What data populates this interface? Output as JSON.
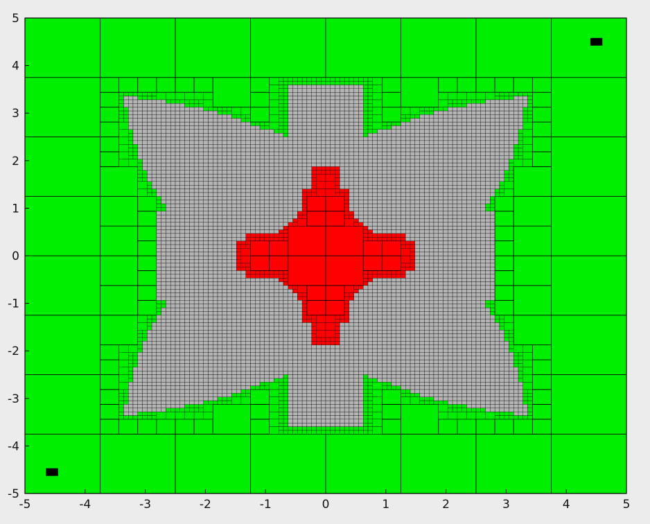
{
  "chart_data": {
    "type": "heatmap",
    "title": "",
    "xlabel": "",
    "ylabel": "",
    "xlim": [
      -5,
      5
    ],
    "ylim": [
      -5,
      5
    ],
    "xticks": [
      -5,
      -4,
      -3,
      -2,
      -1,
      0,
      1,
      2,
      3,
      4,
      5
    ],
    "yticks": [
      -5,
      -4,
      -3,
      -2,
      -1,
      0,
      1,
      2,
      3,
      4,
      5
    ],
    "xtick_labels": [
      "-5",
      "-4",
      "-3",
      "-2",
      "-1",
      "0",
      "1",
      "2",
      "3",
      "4",
      "5"
    ],
    "ytick_labels": [
      "-5",
      "-4",
      "-3",
      "-2",
      "-1",
      "0",
      "1",
      "2",
      "3",
      "4",
      "5"
    ],
    "grid": false,
    "description_of_cells": "adaptive quadtree subdivision of the square [-5,5]x[-5,5]; green = boxes excluded, gray = undecided boxes at finest level, red = boxes inside, black = two small marked boxes",
    "colors": {
      "excluded": "#00ee00",
      "undecided": "#b4b4b4",
      "inside": "#ff0000",
      "marker": "#000000",
      "edge": "#000000",
      "background": "#ececec"
    },
    "region_model": {
      "undecided_shape": "four-armed star with arms toward the corners and notches at axis midpoints",
      "inside_shape": "cross-shaped blob centered at origin",
      "undecided_extent": {
        "x": [
          -3.6,
          3.6
        ],
        "y": [
          -3.6,
          3.6
        ]
      },
      "inside_extent": {
        "x": [
          -1.55,
          1.55
        ],
        "y": [
          -1.85,
          1.85
        ]
      }
    },
    "markers": [
      {
        "x": 4.5,
        "y": 4.5,
        "size": 0.2
      },
      {
        "x": -4.55,
        "y": -4.55,
        "size": 0.2
      }
    ]
  }
}
